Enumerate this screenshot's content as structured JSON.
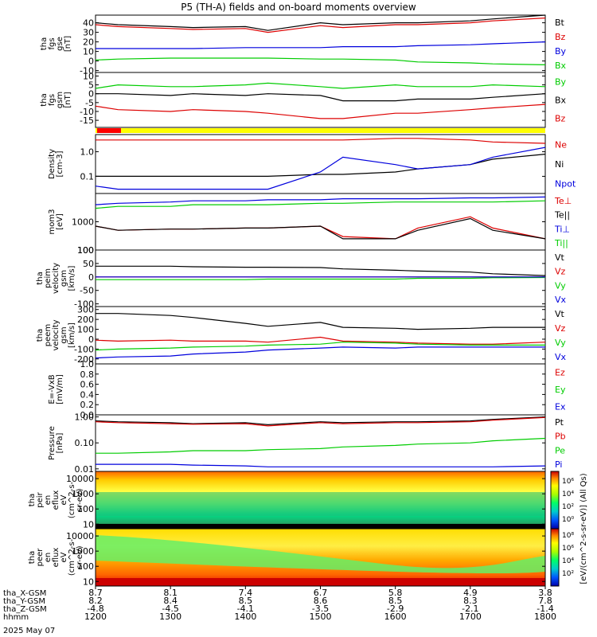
{
  "title": "P5 (TH-A) fields and on-board moments overview",
  "date_label": "2025 May 07",
  "colors": {
    "black": "#000000",
    "red": "#dd0000",
    "green": "#00cc00",
    "blue": "#0000dd",
    "yellow": "#ffff00",
    "red_bar": "#ff0000"
  },
  "panels": [
    {
      "id": "fgs_gse",
      "ylabel": [
        "tha",
        "fgs",
        "gse",
        "[nT]"
      ],
      "yticks": [
        "40",
        "30",
        "20",
        "10",
        "0",
        "-10"
      ],
      "ylim": [
        -12,
        48
      ],
      "legend": [
        {
          "name": "Bt",
          "color": "black"
        },
        {
          "name": "Bz",
          "color": "red"
        },
        {
          "name": "By",
          "color": "blue"
        },
        {
          "name": "Bx",
          "color": "green"
        }
      ]
    },
    {
      "id": "fgs_gsm",
      "ylabel": [
        "tha",
        "fgs",
        "gsm",
        "[nT]"
      ],
      "yticks": [
        "10",
        "5",
        "0",
        "-5",
        "-10",
        "-15"
      ],
      "ylim": [
        -19,
        12
      ],
      "legend": [
        {
          "name": "By",
          "color": "green"
        },
        {
          "name": "Bx",
          "color": "black"
        },
        {
          "name": "Bz",
          "color": "red"
        }
      ]
    },
    {
      "id": "density",
      "ylabel": [
        "Density",
        "[cm-3]"
      ],
      "yticks": [
        "1.0",
        "0.1"
      ],
      "ylim": [
        0.02,
        5
      ],
      "log": true,
      "legend": [
        {
          "name": "Ne",
          "color": "red"
        },
        {
          "name": "Ni",
          "color": "black"
        },
        {
          "name": "Npot",
          "color": "blue"
        }
      ]
    },
    {
      "id": "temperature",
      "ylabel": [
        "mom3",
        "[eV]"
      ],
      "yticks": [
        "1000",
        "100"
      ],
      "ylim": [
        100,
        10000
      ],
      "log": true,
      "legend": [
        {
          "name": "Te⊥",
          "color": "red"
        },
        {
          "name": "Te||",
          "color": "black"
        },
        {
          "name": "Ti⊥",
          "color": "blue"
        },
        {
          "name": "Ti||",
          "color": "green"
        }
      ]
    },
    {
      "id": "peim_velocity",
      "ylabel": [
        "tha",
        "peim",
        "velocity",
        "gsm",
        "[km/s]"
      ],
      "yticks": [
        "100",
        "50",
        "0",
        "-50",
        "-100"
      ],
      "ylim": [
        -110,
        100
      ],
      "legend": [
        {
          "name": "Vt",
          "color": "black"
        },
        {
          "name": "Vz",
          "color": "red"
        },
        {
          "name": "Vy",
          "color": "green"
        },
        {
          "name": "Vx",
          "color": "blue"
        }
      ]
    },
    {
      "id": "peem_velocity",
      "ylabel": [
        "tha",
        "peem",
        "velocity",
        "gsm",
        "[km/s]"
      ],
      "yticks": [
        "300",
        "200",
        "100",
        "0",
        "-100",
        "-200"
      ],
      "ylim": [
        -250,
        330
      ],
      "legend": [
        {
          "name": "Vt",
          "color": "black"
        },
        {
          "name": "Vz",
          "color": "red"
        },
        {
          "name": "Vy",
          "color": "green"
        },
        {
          "name": "Vx",
          "color": "blue"
        }
      ]
    },
    {
      "id": "efield",
      "ylabel": [
        "E=-VxB",
        "[mV/m]"
      ],
      "yticks": [
        "1.0",
        "0.8",
        "0.6",
        "0.4",
        "0.2",
        "0.0"
      ],
      "ylim": [
        0,
        1
      ],
      "legend": [
        {
          "name": "Ez",
          "color": "red"
        },
        {
          "name": "Ey",
          "color": "green"
        },
        {
          "name": "Ex",
          "color": "blue"
        }
      ]
    },
    {
      "id": "pressure",
      "ylabel": [
        "Pressure",
        "[nPa]"
      ],
      "yticks": [
        "1.00",
        "0.10",
        "0.01"
      ],
      "ylim": [
        0.008,
        1.2
      ],
      "log": true,
      "legend": [
        {
          "name": "Pt",
          "color": "black"
        },
        {
          "name": "Pb",
          "color": "red"
        },
        {
          "name": "Pe",
          "color": "green"
        },
        {
          "name": "Pi",
          "color": "blue"
        }
      ]
    },
    {
      "id": "peir_spec",
      "ylabel": [
        "tha",
        "peir",
        "en",
        "eflux",
        "eV",
        "(cm^2-s-",
        "sr-eV)"
      ],
      "yticks": [
        "10000",
        "1000",
        "100",
        "10"
      ],
      "ylim": [
        5,
        30000
      ],
      "log": true
    },
    {
      "id": "peer_spec",
      "ylabel": [
        "tha",
        "peer",
        "en",
        "eflux",
        "eV",
        "(cm^2-s-",
        "sr-eV)"
      ],
      "yticks": [
        "10000",
        "1000",
        "100",
        "10"
      ],
      "ylim": [
        5,
        30000
      ],
      "log": true
    }
  ],
  "colorbar": {
    "ticks_top": [
      "10⁶",
      "10⁴",
      "10²",
      "10⁰"
    ],
    "ticks_bottom": [
      "10⁸",
      "10⁶",
      "10⁴",
      "10²"
    ],
    "label": "[eV/(cm^2-s-sr-eV)] (All Qs)"
  },
  "x_axis": {
    "rows": [
      {
        "label": "tha_X-GSM",
        "values": [
          "8.7",
          "8.1",
          "7.4",
          "6.7",
          "5.8",
          "4.9",
          "3.8"
        ]
      },
      {
        "label": "tha_Y-GSM",
        "values": [
          "8.2",
          "8.4",
          "8.5",
          "8.6",
          "8.5",
          "8.3",
          "7.8"
        ]
      },
      {
        "label": "tha_Z-GSM",
        "values": [
          "-4.8",
          "-4.5",
          "-4.1",
          "-3.5",
          "-2.9",
          "-2.1",
          "-1.4"
        ]
      },
      {
        "label": "hhmm",
        "values": [
          "1200",
          "1300",
          "1400",
          "1500",
          "1600",
          "1700",
          "1800"
        ]
      }
    ],
    "xlim": [
      1200,
      1800
    ]
  },
  "chart_data": {
    "type": "line",
    "x": [
      1200,
      1230,
      1300,
      1330,
      1400,
      1430,
      1500,
      1530,
      1600,
      1630,
      1700,
      1730,
      1800
    ],
    "xlim": [
      1200,
      1800
    ],
    "panels": [
      {
        "panel": "fgs_gse",
        "series": [
          {
            "name": "Bt",
            "values": [
              40,
              38,
              36,
              35,
              36,
              32,
              40,
              38,
              40,
              40,
              42,
              44,
              48
            ]
          },
          {
            "name": "Bz",
            "values": [
              38,
              36,
              34,
              33,
              34,
              30,
              37,
              35,
              38,
              38,
              40,
              42,
              45
            ]
          },
          {
            "name": "By",
            "values": [
              13,
              13,
              13,
              13,
              14,
              14,
              14,
              15,
              15,
              16,
              17,
              18,
              20
            ]
          },
          {
            "name": "Bx",
            "values": [
              1,
              2,
              3,
              3,
              3,
              3,
              2,
              2,
              1,
              -1,
              -2,
              -3,
              -4
            ]
          }
        ]
      },
      {
        "panel": "fgs_gsm",
        "series": [
          {
            "name": "By",
            "values": [
              3,
              5,
              4,
              4,
              5,
              6,
              4,
              3,
              5,
              4,
              4,
              5,
              4
            ]
          },
          {
            "name": "Bx",
            "values": [
              0,
              0,
              -1,
              0,
              -1,
              0,
              -1,
              -4,
              -4,
              -3,
              -3,
              -2,
              0
            ]
          },
          {
            "name": "Bz",
            "values": [
              -7,
              -9,
              -10,
              -9,
              -10,
              -11,
              -14,
              -14,
              -11,
              -11,
              -9,
              -8,
              -6
            ]
          }
        ]
      },
      {
        "panel": "density",
        "series": [
          {
            "name": "Ne",
            "values": [
              3,
              3,
              3,
              3,
              3,
              3,
              3,
              3,
              3.5,
              3.5,
              3,
              2.5,
              2.2
            ]
          },
          {
            "name": "Ni",
            "values": [
              0.1,
              0.1,
              0.1,
              0.1,
              0.1,
              0.1,
              0.12,
              0.12,
              0.15,
              0.2,
              0.3,
              0.5,
              0.8
            ]
          },
          {
            "name": "Npot",
            "values": [
              0.04,
              0.03,
              0.03,
              0.03,
              0.03,
              0.03,
              0.15,
              0.6,
              0.3,
              0.2,
              0.3,
              0.6,
              1.5
            ]
          }
        ]
      },
      {
        "panel": "temperature",
        "series": [
          {
            "name": "Te⊥",
            "values": [
              700,
              500,
              550,
              550,
              600,
              600,
              700,
              300,
              250,
              600,
              1500,
              600,
              250
            ]
          },
          {
            "name": "Te||",
            "values": [
              700,
              500,
              550,
              550,
              600,
              600,
              700,
              250,
              250,
              500,
              1300,
              500,
              250
            ]
          },
          {
            "name": "Ti⊥",
            "values": [
              4000,
              4500,
              5000,
              5500,
              5500,
              6000,
              6000,
              6500,
              6500,
              6500,
              7000,
              7000,
              7500
            ]
          },
          {
            "name": "Ti||",
            "values": [
              3000,
              3500,
              3500,
              4000,
              4000,
              4000,
              4500,
              4500,
              5000,
              5000,
              5000,
              5000,
              5500
            ]
          }
        ]
      },
      {
        "panel": "peim_velocity",
        "series": [
          {
            "name": "Vt",
            "values": [
              40,
              40,
              40,
              38,
              36,
              36,
              35,
              30,
              25,
              22,
              18,
              12,
              5
            ]
          },
          {
            "name": "Vz",
            "values": [
              0,
              0,
              0,
              0,
              0,
              0,
              0,
              0,
              0,
              0,
              0,
              0,
              0
            ]
          },
          {
            "name": "Vy",
            "values": [
              -10,
              -10,
              -10,
              -10,
              -10,
              -8,
              -8,
              -8,
              -8,
              -5,
              -5,
              -3,
              -2
            ]
          },
          {
            "name": "Vx",
            "values": [
              0,
              0,
              0,
              0,
              0,
              0,
              0,
              0,
              0,
              0,
              0,
              0,
              0
            ]
          }
        ]
      },
      {
        "panel": "peem_velocity",
        "series": [
          {
            "name": "Vt",
            "values": [
              260,
              260,
              240,
              220,
              160,
              130,
              170,
              120,
              110,
              100,
              110,
              120,
              120
            ]
          },
          {
            "name": "Vz",
            "values": [
              -10,
              -20,
              -10,
              -20,
              -20,
              -30,
              20,
              -20,
              -30,
              -40,
              -50,
              -50,
              -30
            ]
          },
          {
            "name": "Vy",
            "values": [
              -110,
              -100,
              -90,
              -80,
              -70,
              -60,
              -50,
              -30,
              -40,
              -50,
              -60,
              -60,
              -60
            ]
          },
          {
            "name": "Vx",
            "values": [
              -190,
              -180,
              -170,
              -150,
              -130,
              -110,
              -90,
              -80,
              -90,
              -80,
              -80,
              -80,
              -80
            ]
          }
        ]
      },
      {
        "panel": "pressure",
        "series": [
          {
            "name": "Pt",
            "values": [
              0.7,
              0.65,
              0.6,
              0.55,
              0.6,
              0.5,
              0.65,
              0.6,
              0.65,
              0.65,
              0.7,
              0.8,
              1.0
            ]
          },
          {
            "name": "Pb",
            "values": [
              0.65,
              0.6,
              0.55,
              0.52,
              0.55,
              0.45,
              0.6,
              0.55,
              0.6,
              0.6,
              0.65,
              0.75,
              0.95
            ]
          },
          {
            "name": "Pe",
            "values": [
              0.04,
              0.04,
              0.045,
              0.05,
              0.05,
              0.055,
              0.06,
              0.07,
              0.08,
              0.09,
              0.1,
              0.12,
              0.15
            ]
          },
          {
            "name": "Pi",
            "values": [
              0.015,
              0.015,
              0.015,
              0.014,
              0.013,
              0.012,
              0.012,
              0.012,
              0.012,
              0.012,
              0.012,
              0.012,
              0.013
            ]
          }
        ]
      }
    ]
  }
}
